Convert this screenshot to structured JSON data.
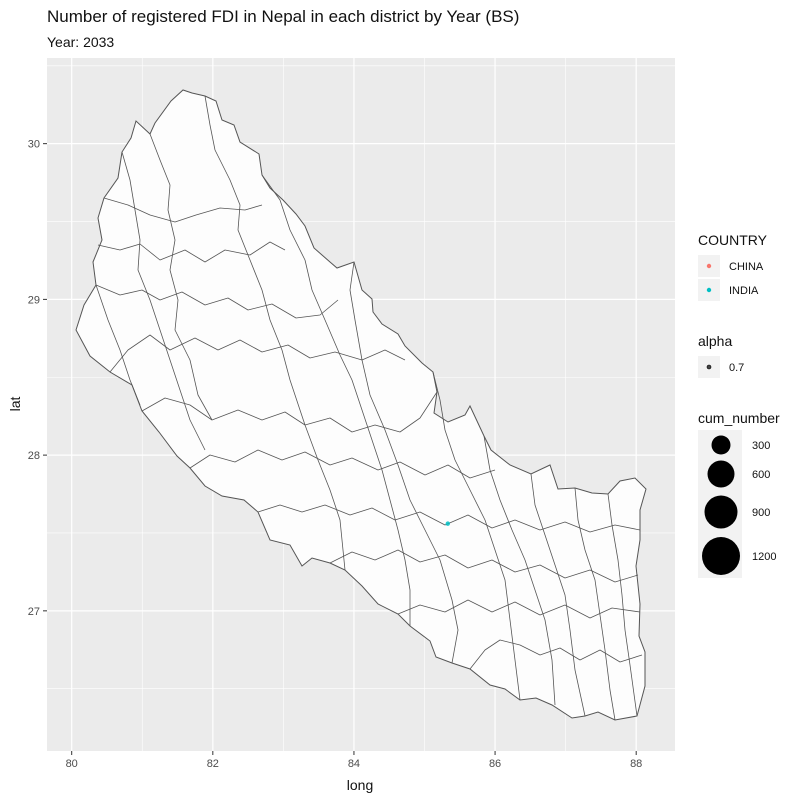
{
  "title": "Number of registered FDI in Nepal in each district by Year (BS)",
  "subtitle": "Year: 2033",
  "chart_data": {
    "type": "scatter",
    "xlabel": "long",
    "ylabel": "lat",
    "xlim": [
      79.65,
      88.55
    ],
    "ylim": [
      26.1,
      30.55
    ],
    "xticks": [
      80,
      82,
      84,
      86,
      88
    ],
    "yticks": [
      27,
      28,
      29,
      30
    ],
    "x_tick_labels": [
      "80",
      "82",
      "84",
      "86",
      "88"
    ],
    "y_tick_labels": [
      "27",
      "28",
      "29",
      "30"
    ],
    "grid": true,
    "legend_position": "right",
    "points": [
      {
        "country": "INDIA",
        "long": 85.33,
        "lat": 27.56,
        "cum_number": 1
      }
    ],
    "legends": {
      "country": {
        "title": "COUNTRY",
        "items": [
          {
            "label": "CHINA",
            "color": "#F8766D"
          },
          {
            "label": "INDIA",
            "color": "#00BFC4"
          }
        ]
      },
      "alpha": {
        "title": "alpha",
        "items": [
          {
            "label": "0.7",
            "color": "#000000"
          }
        ]
      },
      "size": {
        "title": "cum_number",
        "items": [
          {
            "label": "300",
            "value": 300
          },
          {
            "label": "600",
            "value": 600
          },
          {
            "label": "900",
            "value": 900
          },
          {
            "label": "1200",
            "value": 1200
          }
        ]
      }
    }
  },
  "colors": {
    "panel_background": "#EBEBEB",
    "gridline": "#FFFFFF",
    "district_fill": "#FDFDFD",
    "district_stroke": "#555555",
    "legend_key_background": "#F2F2F2"
  }
}
